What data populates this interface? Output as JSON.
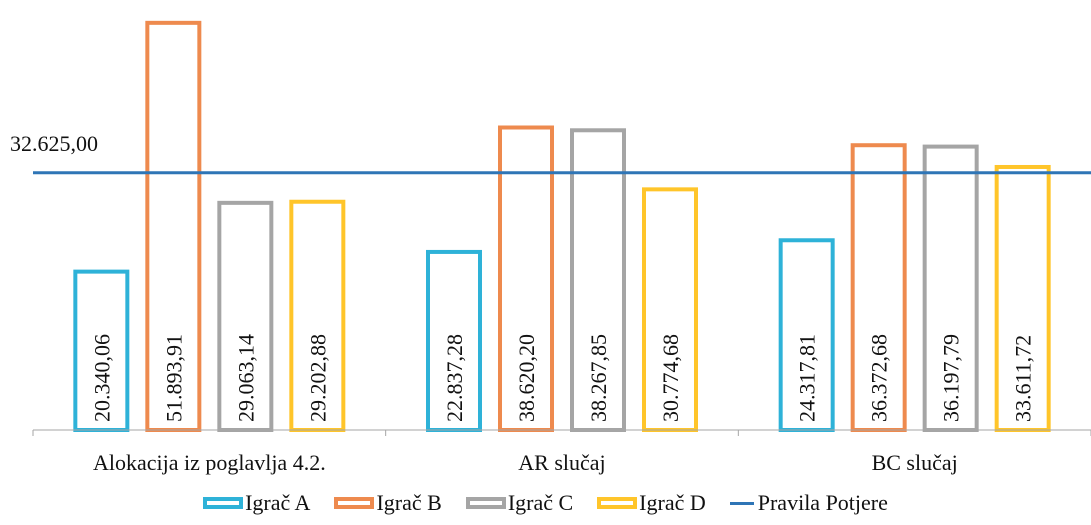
{
  "chart_data": {
    "type": "bar",
    "categories": [
      "Alokacija iz poglavlja 4.2.",
      "AR slučaj",
      "BC slučaj"
    ],
    "series": [
      {
        "name": "Igrač A",
        "color": "#2EB2D8",
        "values": [
          20340.06,
          22837.28,
          24317.81
        ],
        "labels": [
          "20.340,06",
          "22.837,28",
          "24.317,81"
        ]
      },
      {
        "name": "Igrač B",
        "color": "#EE8A4E",
        "values": [
          51893.91,
          38620.2,
          36372.68
        ],
        "labels": [
          "51.893,91",
          "38.620,20",
          "36.372,68"
        ]
      },
      {
        "name": "Igrač C",
        "color": "#A5A5A5",
        "values": [
          29063.14,
          38267.85,
          36197.79
        ],
        "labels": [
          "29.063,14",
          "38.267,85",
          "36.197,79"
        ]
      },
      {
        "name": "Igrač D",
        "color": "#FFC52A",
        "values": [
          29202.88,
          30774.68,
          33611.72
        ],
        "labels": [
          "29.202,88",
          "30.774,68",
          "33.611,72"
        ]
      }
    ],
    "reference_line": {
      "name": "Pravila Potjere",
      "value": 32625.0,
      "label": "32.625,00",
      "color": "#2E75B6"
    },
    "ylim": [
      0,
      52000
    ],
    "legend_position": "bottom",
    "grid": false
  }
}
